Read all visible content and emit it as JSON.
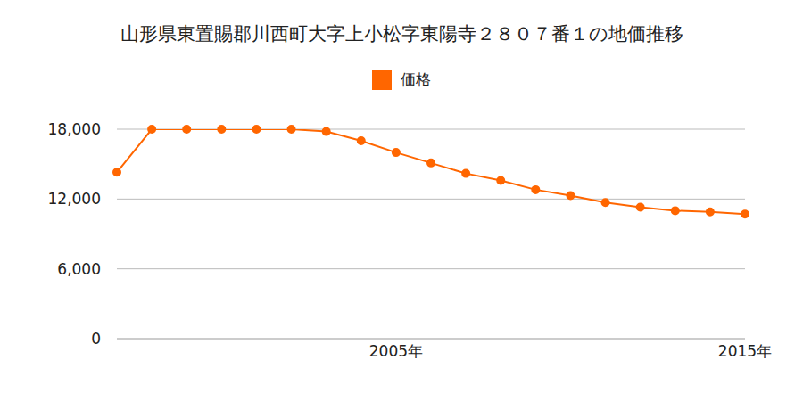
{
  "chart_data": {
    "type": "line",
    "title": "山形県東置賜郡川西町大字上小松字東陽寺２８０７番１の地価推移",
    "categories": [
      null,
      null,
      null,
      null,
      null,
      null,
      null,
      null,
      "2005年",
      null,
      null,
      null,
      null,
      null,
      null,
      null,
      null,
      null,
      "2015年"
    ],
    "series": [
      {
        "name": "価格",
        "color": "#ff6600",
        "values": [
          14300,
          18000,
          18000,
          18000,
          18000,
          18000,
          17800,
          17000,
          16000,
          15100,
          14200,
          13600,
          12800,
          12300,
          11700,
          11300,
          11000,
          10900,
          10700
        ]
      }
    ],
    "ylim": [
      0,
      18000
    ],
    "yticks": [
      0,
      {
        "value": 6000,
        "label": "6,000"
      },
      {
        "value": 12000,
        "label": "12,000"
      },
      {
        "value": 18000,
        "label": "18,000"
      }
    ],
    "grid": true,
    "marker": "circle",
    "legend": "top"
  }
}
